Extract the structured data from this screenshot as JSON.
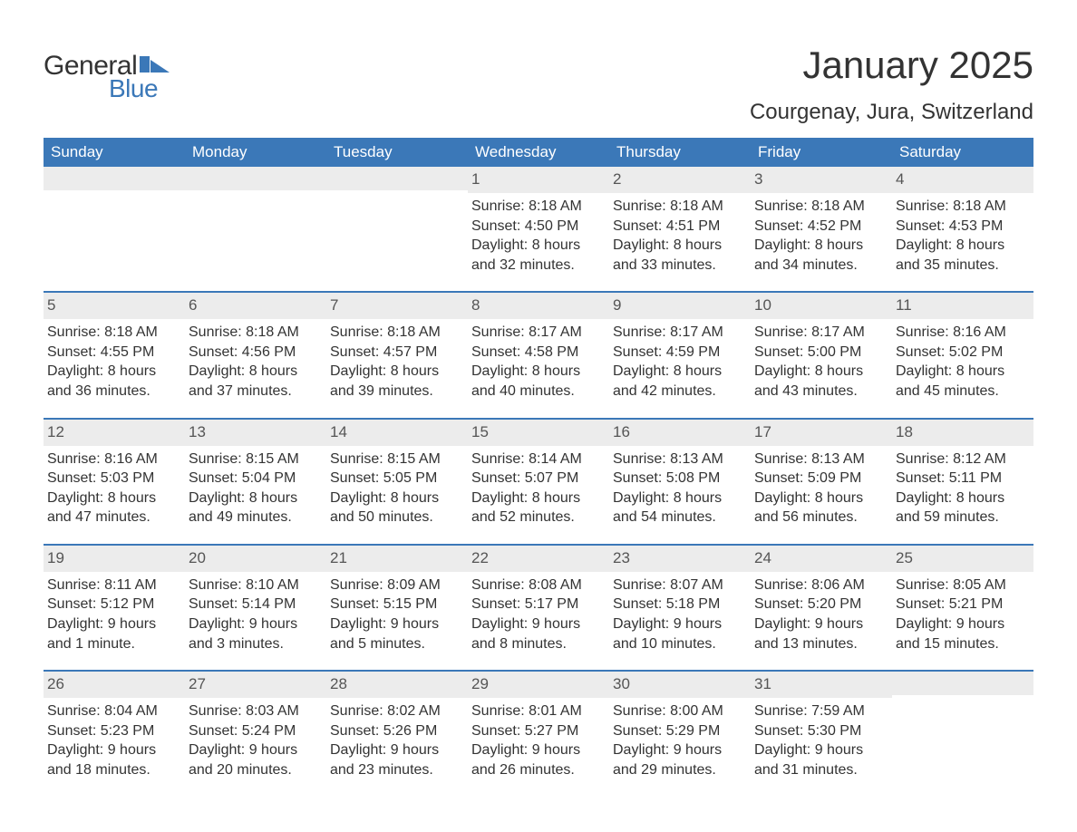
{
  "logo": {
    "text_general": "General",
    "text_blue": "Blue",
    "flag_color": "#3b78b8"
  },
  "title": "January 2025",
  "location": "Courgenay, Jura, Switzerland",
  "colors": {
    "header_bg": "#3b78b8",
    "header_text": "#ffffff",
    "daynum_bg": "#ececec",
    "text": "#333333",
    "row_border": "#3b78b8"
  },
  "weekdays": [
    "Sunday",
    "Monday",
    "Tuesday",
    "Wednesday",
    "Thursday",
    "Friday",
    "Saturday"
  ],
  "weeks": [
    [
      null,
      null,
      null,
      {
        "n": "1",
        "sunrise": "8:18 AM",
        "sunset": "4:50 PM",
        "dl1": "8 hours",
        "dl2": "and 32 minutes."
      },
      {
        "n": "2",
        "sunrise": "8:18 AM",
        "sunset": "4:51 PM",
        "dl1": "8 hours",
        "dl2": "and 33 minutes."
      },
      {
        "n": "3",
        "sunrise": "8:18 AM",
        "sunset": "4:52 PM",
        "dl1": "8 hours",
        "dl2": "and 34 minutes."
      },
      {
        "n": "4",
        "sunrise": "8:18 AM",
        "sunset": "4:53 PM",
        "dl1": "8 hours",
        "dl2": "and 35 minutes."
      }
    ],
    [
      {
        "n": "5",
        "sunrise": "8:18 AM",
        "sunset": "4:55 PM",
        "dl1": "8 hours",
        "dl2": "and 36 minutes."
      },
      {
        "n": "6",
        "sunrise": "8:18 AM",
        "sunset": "4:56 PM",
        "dl1": "8 hours",
        "dl2": "and 37 minutes."
      },
      {
        "n": "7",
        "sunrise": "8:18 AM",
        "sunset": "4:57 PM",
        "dl1": "8 hours",
        "dl2": "and 39 minutes."
      },
      {
        "n": "8",
        "sunrise": "8:17 AM",
        "sunset": "4:58 PM",
        "dl1": "8 hours",
        "dl2": "and 40 minutes."
      },
      {
        "n": "9",
        "sunrise": "8:17 AM",
        "sunset": "4:59 PM",
        "dl1": "8 hours",
        "dl2": "and 42 minutes."
      },
      {
        "n": "10",
        "sunrise": "8:17 AM",
        "sunset": "5:00 PM",
        "dl1": "8 hours",
        "dl2": "and 43 minutes."
      },
      {
        "n": "11",
        "sunrise": "8:16 AM",
        "sunset": "5:02 PM",
        "dl1": "8 hours",
        "dl2": "and 45 minutes."
      }
    ],
    [
      {
        "n": "12",
        "sunrise": "8:16 AM",
        "sunset": "5:03 PM",
        "dl1": "8 hours",
        "dl2": "and 47 minutes."
      },
      {
        "n": "13",
        "sunrise": "8:15 AM",
        "sunset": "5:04 PM",
        "dl1": "8 hours",
        "dl2": "and 49 minutes."
      },
      {
        "n": "14",
        "sunrise": "8:15 AM",
        "sunset": "5:05 PM",
        "dl1": "8 hours",
        "dl2": "and 50 minutes."
      },
      {
        "n": "15",
        "sunrise": "8:14 AM",
        "sunset": "5:07 PM",
        "dl1": "8 hours",
        "dl2": "and 52 minutes."
      },
      {
        "n": "16",
        "sunrise": "8:13 AM",
        "sunset": "5:08 PM",
        "dl1": "8 hours",
        "dl2": "and 54 minutes."
      },
      {
        "n": "17",
        "sunrise": "8:13 AM",
        "sunset": "5:09 PM",
        "dl1": "8 hours",
        "dl2": "and 56 minutes."
      },
      {
        "n": "18",
        "sunrise": "8:12 AM",
        "sunset": "5:11 PM",
        "dl1": "8 hours",
        "dl2": "and 59 minutes."
      }
    ],
    [
      {
        "n": "19",
        "sunrise": "8:11 AM",
        "sunset": "5:12 PM",
        "dl1": "9 hours",
        "dl2": "and 1 minute."
      },
      {
        "n": "20",
        "sunrise": "8:10 AM",
        "sunset": "5:14 PM",
        "dl1": "9 hours",
        "dl2": "and 3 minutes."
      },
      {
        "n": "21",
        "sunrise": "8:09 AM",
        "sunset": "5:15 PM",
        "dl1": "9 hours",
        "dl2": "and 5 minutes."
      },
      {
        "n": "22",
        "sunrise": "8:08 AM",
        "sunset": "5:17 PM",
        "dl1": "9 hours",
        "dl2": "and 8 minutes."
      },
      {
        "n": "23",
        "sunrise": "8:07 AM",
        "sunset": "5:18 PM",
        "dl1": "9 hours",
        "dl2": "and 10 minutes."
      },
      {
        "n": "24",
        "sunrise": "8:06 AM",
        "sunset": "5:20 PM",
        "dl1": "9 hours",
        "dl2": "and 13 minutes."
      },
      {
        "n": "25",
        "sunrise": "8:05 AM",
        "sunset": "5:21 PM",
        "dl1": "9 hours",
        "dl2": "and 15 minutes."
      }
    ],
    [
      {
        "n": "26",
        "sunrise": "8:04 AM",
        "sunset": "5:23 PM",
        "dl1": "9 hours",
        "dl2": "and 18 minutes."
      },
      {
        "n": "27",
        "sunrise": "8:03 AM",
        "sunset": "5:24 PM",
        "dl1": "9 hours",
        "dl2": "and 20 minutes."
      },
      {
        "n": "28",
        "sunrise": "8:02 AM",
        "sunset": "5:26 PM",
        "dl1": "9 hours",
        "dl2": "and 23 minutes."
      },
      {
        "n": "29",
        "sunrise": "8:01 AM",
        "sunset": "5:27 PM",
        "dl1": "9 hours",
        "dl2": "and 26 minutes."
      },
      {
        "n": "30",
        "sunrise": "8:00 AM",
        "sunset": "5:29 PM",
        "dl1": "9 hours",
        "dl2": "and 29 minutes."
      },
      {
        "n": "31",
        "sunrise": "7:59 AM",
        "sunset": "5:30 PM",
        "dl1": "9 hours",
        "dl2": "and 31 minutes."
      },
      null
    ]
  ],
  "labels": {
    "sunrise": "Sunrise: ",
    "sunset": "Sunset: ",
    "daylight": "Daylight: "
  }
}
